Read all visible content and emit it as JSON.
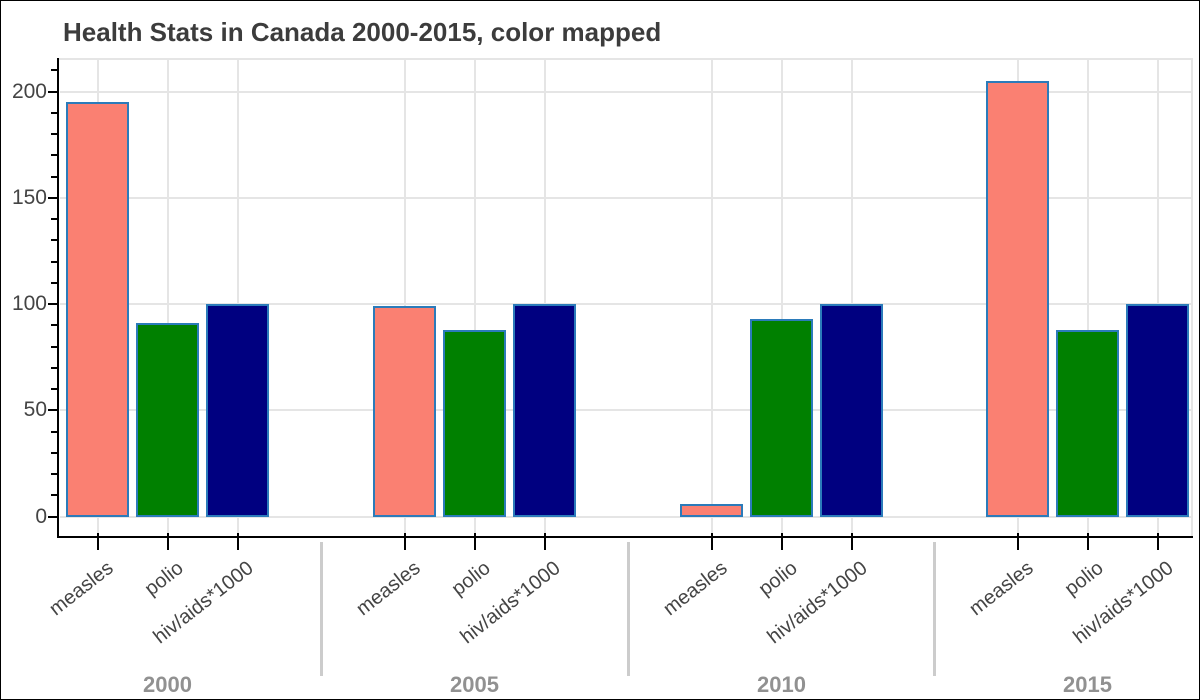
{
  "title": "Health Stats in Canada 2000-2015, color mapped",
  "chart_data": {
    "type": "bar",
    "title": "Health Stats in Canada 2000-2015, color mapped",
    "groups": [
      "2000",
      "2005",
      "2010",
      "2015"
    ],
    "categories": [
      "measles",
      "polio",
      "hiv/aids*1000"
    ],
    "series": [
      {
        "name": "measles",
        "color": "#fa8072",
        "values": [
          195,
          99,
          6,
          205
        ]
      },
      {
        "name": "polio",
        "color": "#008000",
        "values": [
          91,
          88,
          93,
          88
        ]
      },
      {
        "name": "hiv/aids*1000",
        "color": "#000080",
        "values": [
          100,
          100,
          100,
          100
        ]
      }
    ],
    "bar_edge_color": "#2b7bba",
    "y_ticks": [
      0,
      50,
      100,
      150,
      200
    ],
    "y_minor_step": 10,
    "ylim": [
      -10,
      216
    ],
    "xlabel": "",
    "ylabel": "",
    "grid": true,
    "legend_position": "none",
    "title_color": "#3c3c3c",
    "axis_label_color": "#444444",
    "group_label_color": "#919191",
    "gridline_color": "#e5e5e5",
    "separator_color": "#cccccc"
  }
}
